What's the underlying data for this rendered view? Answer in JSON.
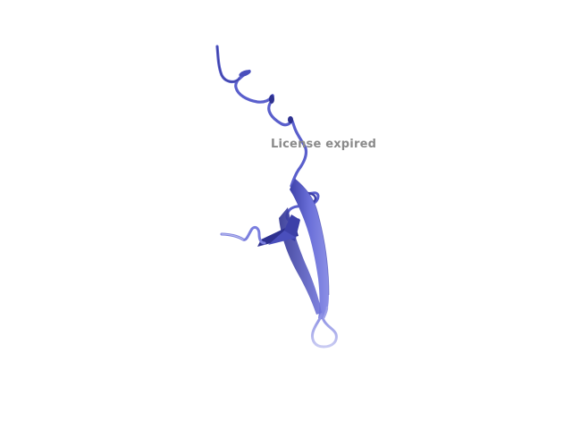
{
  "viewer": {
    "watermark_text": "License expired",
    "background_color": "#ffffff",
    "cartoon_color": "#6a6fd8",
    "cartoon_shadow_color": "#2e3190",
    "loop_light_color": "#b7b9ec",
    "watermark_color": "#8a8a8a"
  }
}
